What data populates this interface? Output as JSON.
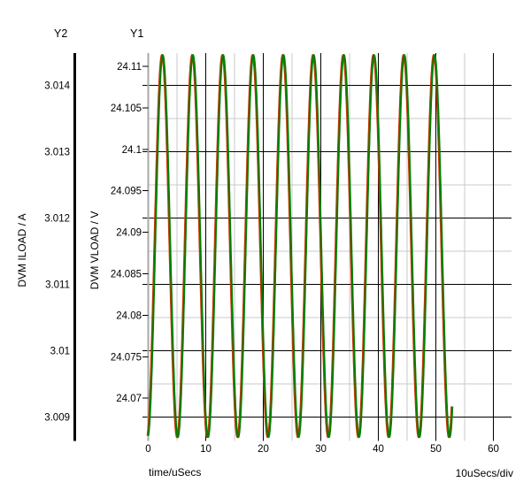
{
  "header": {
    "y2_axis_name": "Y2",
    "y1_axis_name": "Y1"
  },
  "y2_axis": {
    "title": "DVM ILOAD / A",
    "tick_labels": [
      "3.014",
      "3.013",
      "3.012",
      "3.011",
      "3.01",
      "3.009"
    ]
  },
  "y1_axis": {
    "title": "DVM VLOAD / V",
    "tick_labels": [
      "24.11",
      "24.105",
      "24.1",
      "24.095",
      "24.09",
      "24.085",
      "24.08",
      "24.075",
      "24.07"
    ]
  },
  "x_axis": {
    "title": "time/uSecs",
    "tick_labels": [
      "0",
      "10",
      "20",
      "30",
      "40",
      "50",
      "60"
    ],
    "scale_note": "10uSecs/div"
  },
  "chart_data": {
    "type": "line",
    "xlabel": "time/uSecs",
    "x_unit": "uSecs",
    "x_ticks": [
      0,
      10,
      20,
      30,
      40,
      50,
      60
    ],
    "x_major_div_us": 10,
    "x_minor_div_us": 5,
    "x_div_note": "10uSecs/div",
    "x_axis_range": [
      0,
      63.2
    ],
    "x_data_range": [
      0,
      52.9
    ],
    "grid": true,
    "legend_position": "none",
    "y1_ticks": [
      24.11,
      24.105,
      24.1,
      24.095,
      24.09,
      24.085,
      24.08,
      24.075,
      24.07
    ],
    "y2_ticks": [
      3.014,
      3.013,
      3.012,
      3.011,
      3.01,
      3.009
    ],
    "y1_visible_range": [
      24.0645,
      24.1118
    ],
    "y2_visible_range": [
      3.00862,
      3.01448
    ],
    "series": [
      {
        "name": "DVM VLOAD / V",
        "axis": "Y1",
        "color": "#008000",
        "shape": "sine",
        "period_us": 5.25,
        "frequency_hz": 190476,
        "trough_at_us": -0.1,
        "min": 24.065,
        "max": 24.1115,
        "mean": 24.08825
      },
      {
        "name": "DVM ILOAD / A",
        "axis": "Y2",
        "color": "#008000",
        "shape": "sine",
        "period_us": 5.25,
        "frequency_hz": 190476,
        "trough_at_us": -0.1,
        "min": 3.0087,
        "max": 3.01446,
        "mean": 3.011575
      }
    ]
  },
  "colors": {
    "trace": "#008000",
    "trace_under": "#cc3300",
    "grid_major": "#000000",
    "grid_minor": "#c8c8c8",
    "y1_axis_line": "#a8a8a8",
    "y2_axis_line": "#000000",
    "text": "#000000",
    "background": "#ffffff"
  }
}
